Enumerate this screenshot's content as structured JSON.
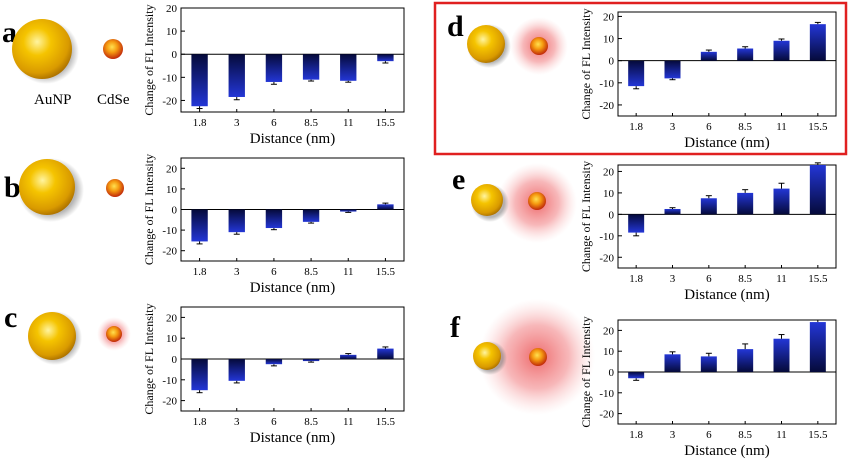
{
  "particle_labels": {
    "gold": "AuNP",
    "dot": "CdSe"
  },
  "colors": {
    "bar_top": "#2336d6",
    "bar_bottom": "#050a3a",
    "highlight_frame": "#e02020",
    "gold": "#f0b800",
    "glow": "#e8383a"
  },
  "chart_data": [
    {
      "panel": "a",
      "type": "bar",
      "categories": [
        "1.8",
        "3",
        "6",
        "8.5",
        "11",
        "15.5"
      ],
      "values": [
        -22.5,
        -18.5,
        -12,
        -11,
        -11.5,
        -3
      ],
      "errors": [
        1.0,
        1.2,
        1.0,
        0.6,
        0.6,
        0.8
      ],
      "xlabel": "Distance (nm)",
      "ylabel": "Change of FL Intensity",
      "ylim": [
        -25,
        20
      ],
      "yticks": [
        "20",
        "10",
        "0",
        "-10",
        "-20"
      ],
      "glow_level": 0
    },
    {
      "panel": "b",
      "type": "bar",
      "categories": [
        "1.8",
        "3",
        "6",
        "8.5",
        "11",
        "15.5"
      ],
      "values": [
        -15.5,
        -11,
        -9,
        -6,
        -1,
        2.5
      ],
      "errors": [
        1.2,
        1.0,
        0.8,
        0.6,
        0.4,
        0.6
      ],
      "xlabel": "Distance (nm)",
      "ylabel": "Change of FL Intensity",
      "ylim": [
        -25,
        25
      ],
      "yticks": [
        "20",
        "10",
        "0",
        "-10",
        "-20"
      ],
      "glow_level": 0
    },
    {
      "panel": "c",
      "type": "bar",
      "categories": [
        "1.8",
        "3",
        "6",
        "8.5",
        "11",
        "15.5"
      ],
      "values": [
        -15,
        -10.5,
        -2.5,
        -1,
        2,
        5
      ],
      "errors": [
        1.2,
        1.0,
        0.8,
        0.5,
        0.6,
        0.8
      ],
      "xlabel": "Distance (nm)",
      "ylabel": "Change of FL Intensity",
      "ylim": [
        -25,
        25
      ],
      "yticks": [
        "20",
        "10",
        "0",
        "-10",
        "-20"
      ],
      "glow_level": 1
    },
    {
      "panel": "d",
      "type": "bar",
      "categories": [
        "1.8",
        "3",
        "6",
        "8.5",
        "11",
        "15.5"
      ],
      "values": [
        -11.5,
        -8,
        4,
        5.5,
        9,
        16.5
      ],
      "errors": [
        1.2,
        0.6,
        0.8,
        0.8,
        0.8,
        0.8
      ],
      "xlabel": "Distance (nm)",
      "ylabel": "Change of FL Intensity",
      "ylim": [
        -25,
        22
      ],
      "yticks": [
        "20",
        "10",
        "0",
        "-10",
        "-20"
      ],
      "glow_level": 2
    },
    {
      "panel": "e",
      "type": "bar",
      "categories": [
        "1.8",
        "3",
        "6",
        "8.5",
        "11",
        "15.5"
      ],
      "values": [
        -8.5,
        2.5,
        7.5,
        10,
        12,
        23
      ],
      "errors": [
        1.5,
        0.6,
        1.2,
        1.5,
        2.5,
        1.0
      ],
      "xlabel": "Distance (nm)",
      "ylabel": "Change of FL Intensity",
      "ylim": [
        -25,
        23
      ],
      "yticks": [
        "20",
        "10",
        "0",
        "-10",
        "-20"
      ],
      "glow_level": 3
    },
    {
      "panel": "f",
      "type": "bar",
      "categories": [
        "1.8",
        "3",
        "6",
        "8.5",
        "11",
        "15.5"
      ],
      "values": [
        -3,
        8.5,
        7.5,
        11,
        16,
        24
      ],
      "errors": [
        1.0,
        1.2,
        1.5,
        2.5,
        2.0,
        1.0
      ],
      "xlabel": "Distance (nm)",
      "ylabel": "Change of FL Intensity",
      "ylim": [
        -25,
        25
      ],
      "yticks": [
        "20",
        "10",
        "0",
        "-10",
        "-20"
      ],
      "glow_level": 4
    }
  ]
}
